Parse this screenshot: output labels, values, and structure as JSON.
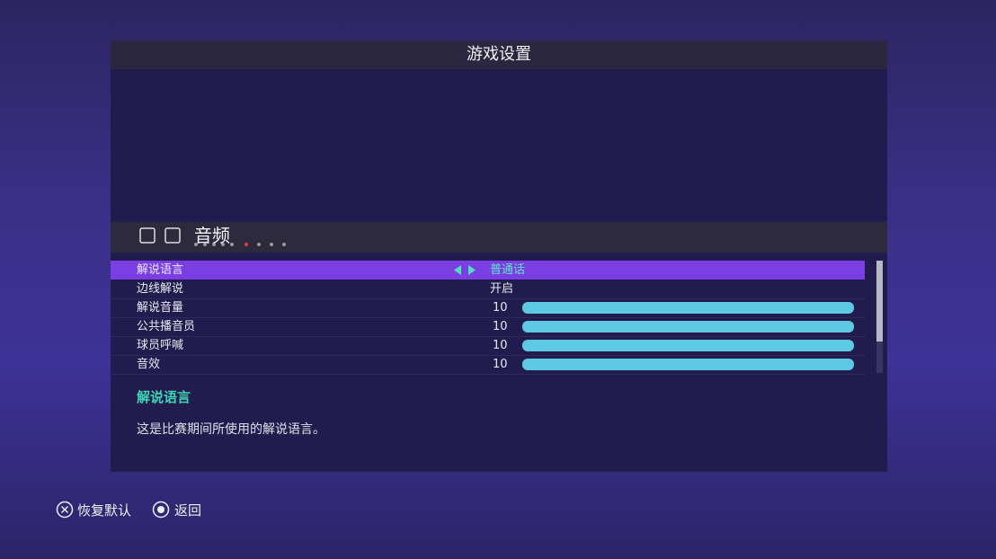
{
  "header": {
    "title": "游戏设置"
  },
  "section": {
    "title": "音频"
  },
  "settings": {
    "rows": [
      {
        "label": "解说语言",
        "value": "普通话"
      },
      {
        "label": "边线解说",
        "value": "开启"
      },
      {
        "label": "解说音量",
        "value": 10
      },
      {
        "label": "公共播音员",
        "value": 10
      },
      {
        "label": "球员呼喊",
        "value": 10
      },
      {
        "label": "音效",
        "value": 10
      }
    ]
  },
  "description": {
    "title": "解说语言",
    "text": "这是比赛期间所使用的解说语言。"
  },
  "footer": {
    "buttons": [
      {
        "label": "恢复默认"
      },
      {
        "label": "返回"
      }
    ]
  }
}
